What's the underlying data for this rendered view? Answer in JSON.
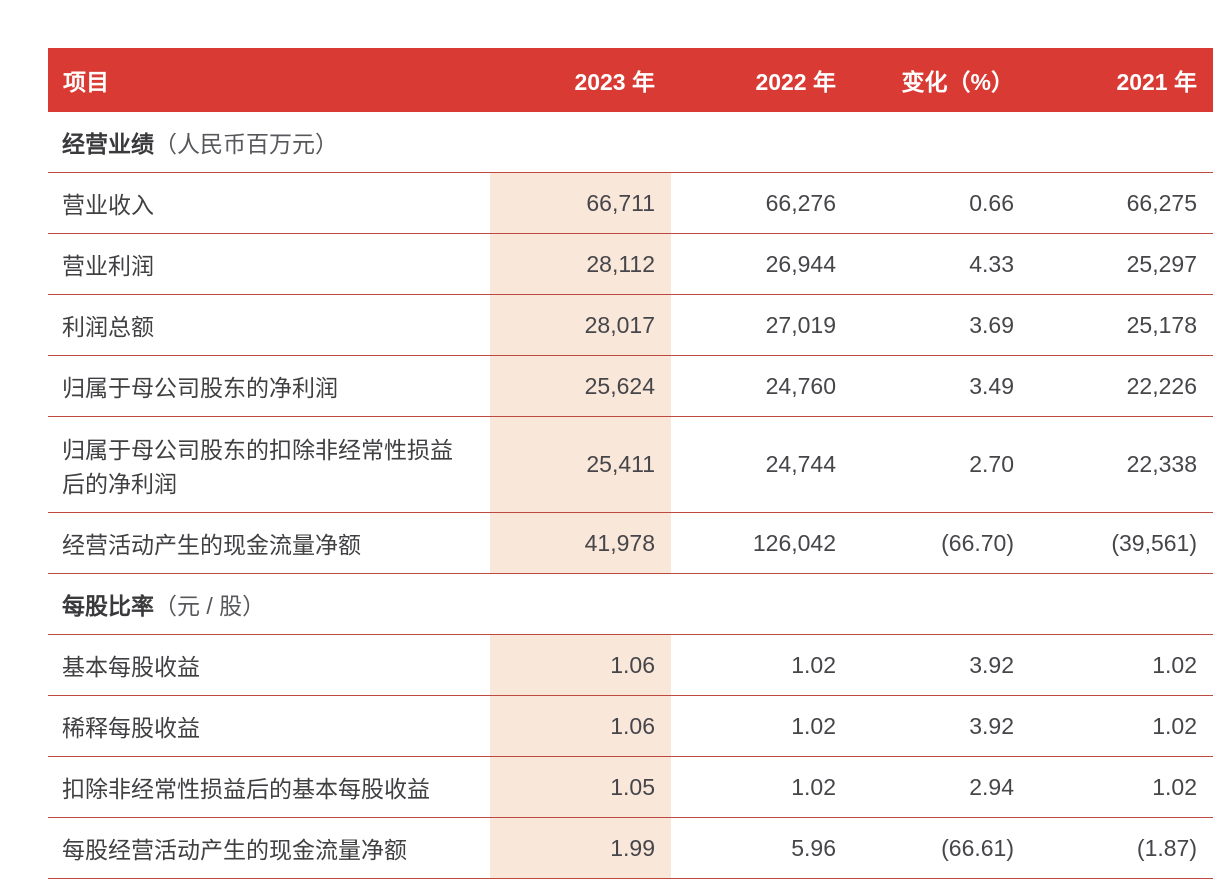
{
  "colors": {
    "header_bg": "#d93a33",
    "header_text": "#ffffff",
    "highlight_column_bg": "#f9e7da",
    "row_rule": "#bc4a43",
    "body_text": "#46464a"
  },
  "table": {
    "header": {
      "item": "项目",
      "col_2023": "2023 年",
      "col_2022": "2022 年",
      "col_change": "变化（%）",
      "col_2021": "2021 年"
    },
    "sections": [
      {
        "title_bold": "经营业绩",
        "title_note": "（人民币百万元）",
        "rows": [
          {
            "label": "营业收入",
            "values": [
              "66,711",
              "66,276",
              "0.66",
              "66,275"
            ]
          },
          {
            "label": "营业利润",
            "values": [
              "28,112",
              "26,944",
              "4.33",
              "25,297"
            ]
          },
          {
            "label": "利润总额",
            "values": [
              "28,017",
              "27,019",
              "3.69",
              "25,178"
            ]
          },
          {
            "label": "归属于母公司股东的净利润",
            "values": [
              "25,624",
              "24,760",
              "3.49",
              "22,226"
            ]
          },
          {
            "label": "归属于母公司股东的扣除非经常性损益\n后的净利润",
            "values": [
              "25,411",
              "24,744",
              "2.70",
              "22,338"
            ]
          },
          {
            "label": "经营活动产生的现金流量净额",
            "values": [
              "41,978",
              "126,042",
              "(66.70)",
              "(39,561)"
            ]
          }
        ]
      },
      {
        "title_bold": "每股比率",
        "title_note": "（元 / 股）",
        "rows": [
          {
            "label": "基本每股收益",
            "values": [
              "1.06",
              "1.02",
              "3.92",
              "1.02"
            ]
          },
          {
            "label": "稀释每股收益",
            "values": [
              "1.06",
              "1.02",
              "3.92",
              "1.02"
            ]
          },
          {
            "label": "扣除非经常性损益后的基本每股收益",
            "values": [
              "1.05",
              "1.02",
              "2.94",
              "1.02"
            ]
          },
          {
            "label": "每股经营活动产生的现金流量净额",
            "values": [
              "1.99",
              "5.96",
              "(66.61)",
              "(1.87)"
            ]
          }
        ]
      }
    ]
  }
}
